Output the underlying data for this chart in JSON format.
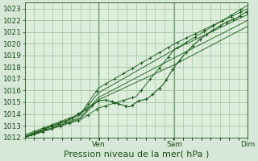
{
  "bg_color": "#d8e8d8",
  "plot_bg_color": "#ddeedd",
  "grid_color": "#99bb99",
  "line_color": "#1a5c1a",
  "marker_color": "#1a5c1a",
  "ylim": [
    1012,
    1023.5
  ],
  "yticks": [
    1012,
    1013,
    1014,
    1015,
    1016,
    1017,
    1018,
    1019,
    1020,
    1021,
    1022,
    1023
  ],
  "xlabel": "Pression niveau de la mer( hPa )",
  "xlabel_fontsize": 8,
  "tick_fontsize": 6.5,
  "figsize": [
    3.2,
    2.0
  ],
  "dpi": 100
}
